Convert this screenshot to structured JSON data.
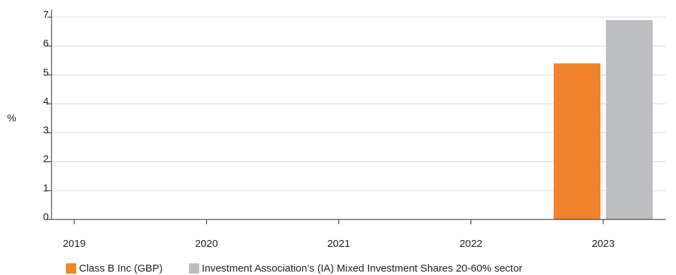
{
  "chart_data": {
    "type": "bar",
    "categories": [
      "2019",
      "2020",
      "2021",
      "2022",
      "2023"
    ],
    "series": [
      {
        "name": "Class B Inc (GBP)",
        "values": [
          null,
          null,
          null,
          null,
          5.4
        ],
        "color": "#f0832b"
      },
      {
        "name": "Investment Association’s (IA) Mixed Investment Shares 20-60% sector",
        "values": [
          null,
          null,
          null,
          null,
          6.9
        ],
        "color": "#bcbdc0"
      }
    ],
    "ylabel": "%",
    "ylim": [
      0,
      7
    ],
    "yticks": [
      0,
      1,
      2,
      3,
      4,
      5,
      6,
      7
    ],
    "grid": true,
    "legend_position": "bottom-left"
  }
}
